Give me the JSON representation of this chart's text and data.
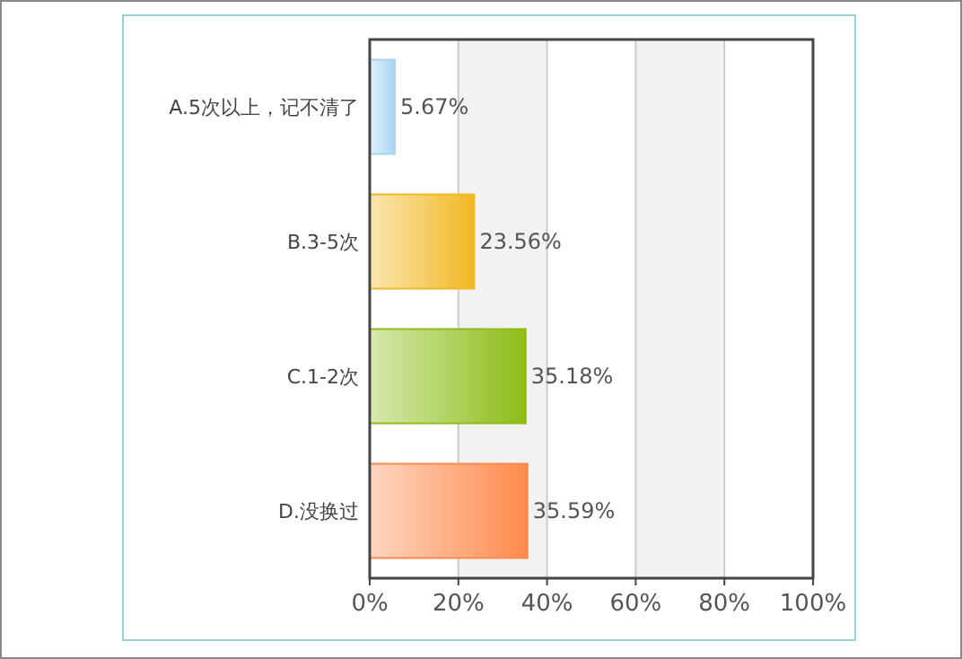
{
  "chart_data": {
    "type": "bar",
    "orientation": "horizontal",
    "categories": [
      "A.5次以上，记不清了",
      "B.3-5次",
      "C.1-2次",
      "D.没换过"
    ],
    "values": [
      5.67,
      23.56,
      35.18,
      35.59
    ],
    "colors": [
      "#a8d4f2",
      "#f2b824",
      "#8cbd18",
      "#ff8a4c"
    ],
    "value_labels": [
      "5.67%",
      "23.56%",
      "35.18%",
      "35.59%"
    ],
    "xlim": [
      0,
      100
    ],
    "xticks": [
      {
        "value": 0,
        "label": "0%"
      },
      {
        "value": 20,
        "label": "20%"
      },
      {
        "value": 40,
        "label": "40%"
      },
      {
        "value": 60,
        "label": "60%"
      },
      {
        "value": 80,
        "label": "80%"
      },
      {
        "value": 100,
        "label": "100%"
      }
    ],
    "grid": "x"
  }
}
